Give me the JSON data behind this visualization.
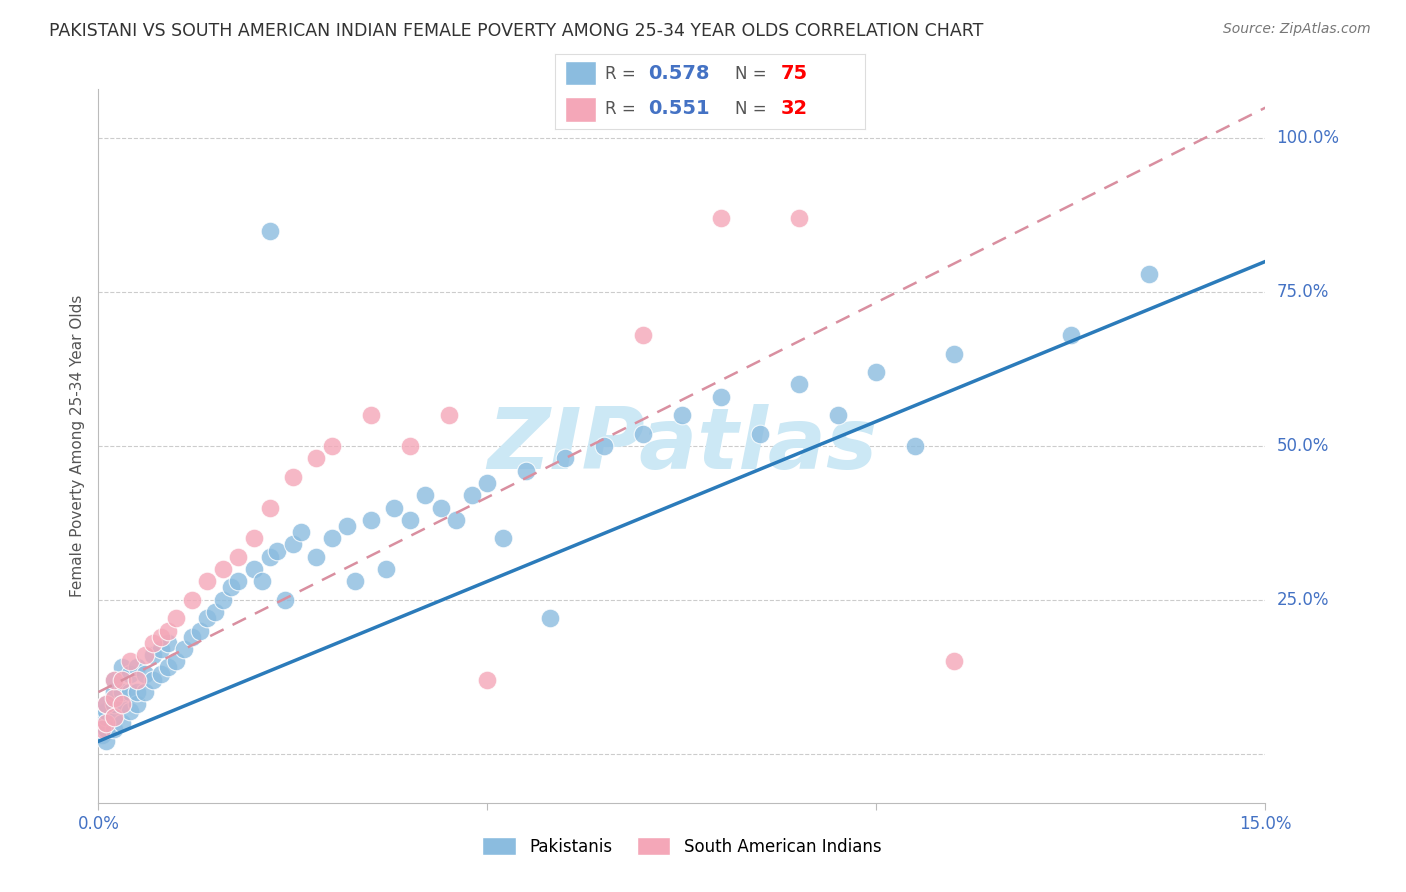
{
  "title": "PAKISTANI VS SOUTH AMERICAN INDIAN FEMALE POVERTY AMONG 25-34 YEAR OLDS CORRELATION CHART",
  "source": "Source: ZipAtlas.com",
  "ylabel": "Female Poverty Among 25-34 Year Olds",
  "xlim": [
    0.0,
    0.15
  ],
  "ylim": [
    -0.05,
    1.05
  ],
  "pakistani_R": 0.578,
  "pakistani_N": 75,
  "sai_R": 0.551,
  "sai_N": 32,
  "blue_scatter_color": "#8bbcdf",
  "pink_scatter_color": "#f4a7b8",
  "blue_line_color": "#2b7bba",
  "pink_line_color": "#d98fa0",
  "watermark_color": "#cce8f5",
  "title_color": "#333333",
  "axis_label_color": "#555555",
  "tick_color": "#4472C4",
  "grid_color": "#cccccc",
  "legend_R_color": "#4472C4",
  "legend_N_color": "#FF0000",
  "pak_x": [
    0.0005,
    0.001,
    0.001,
    0.001,
    0.001,
    0.001,
    0.001,
    0.002,
    0.002,
    0.002,
    0.002,
    0.002,
    0.003,
    0.003,
    0.003,
    0.003,
    0.004,
    0.004,
    0.004,
    0.005,
    0.005,
    0.005,
    0.006,
    0.006,
    0.007,
    0.007,
    0.008,
    0.008,
    0.009,
    0.009,
    0.01,
    0.011,
    0.012,
    0.013,
    0.014,
    0.015,
    0.016,
    0.017,
    0.018,
    0.02,
    0.021,
    0.022,
    0.023,
    0.024,
    0.025,
    0.026,
    0.028,
    0.03,
    0.032,
    0.033,
    0.035,
    0.037,
    0.038,
    0.04,
    0.042,
    0.044,
    0.046,
    0.048,
    0.05,
    0.052,
    0.055,
    0.058,
    0.06,
    0.065,
    0.07,
    0.075,
    0.08,
    0.085,
    0.09,
    0.095,
    0.1,
    0.105,
    0.11,
    0.125,
    0.135
  ],
  "pak_y": [
    0.03,
    0.02,
    0.04,
    0.05,
    0.06,
    0.07,
    0.08,
    0.04,
    0.06,
    0.08,
    0.1,
    0.12,
    0.05,
    0.08,
    0.1,
    0.14,
    0.07,
    0.1,
    0.13,
    0.08,
    0.1,
    0.14,
    0.1,
    0.13,
    0.12,
    0.16,
    0.13,
    0.17,
    0.14,
    0.18,
    0.15,
    0.17,
    0.19,
    0.2,
    0.22,
    0.23,
    0.25,
    0.27,
    0.28,
    0.3,
    0.28,
    0.32,
    0.33,
    0.25,
    0.34,
    0.36,
    0.32,
    0.35,
    0.37,
    0.28,
    0.38,
    0.3,
    0.4,
    0.38,
    0.42,
    0.4,
    0.38,
    0.42,
    0.44,
    0.35,
    0.46,
    0.22,
    0.48,
    0.5,
    0.52,
    0.55,
    0.58,
    0.52,
    0.6,
    0.55,
    0.62,
    0.5,
    0.65,
    0.68,
    0.78
  ],
  "pak_outlier_x": [
    0.022
  ],
  "pak_outlier_y": [
    0.85
  ],
  "sai_x": [
    0.0005,
    0.001,
    0.001,
    0.002,
    0.002,
    0.002,
    0.003,
    0.003,
    0.004,
    0.005,
    0.006,
    0.007,
    0.008,
    0.009,
    0.01,
    0.012,
    0.014,
    0.016,
    0.018,
    0.02,
    0.022,
    0.025,
    0.028,
    0.03,
    0.035,
    0.04,
    0.045,
    0.05,
    0.07,
    0.08,
    0.09,
    0.11
  ],
  "sai_y": [
    0.04,
    0.05,
    0.08,
    0.06,
    0.09,
    0.12,
    0.08,
    0.12,
    0.15,
    0.12,
    0.16,
    0.18,
    0.19,
    0.2,
    0.22,
    0.25,
    0.28,
    0.3,
    0.32,
    0.35,
    0.4,
    0.45,
    0.48,
    0.5,
    0.55,
    0.5,
    0.55,
    0.12,
    0.68,
    0.87,
    0.87,
    0.15
  ],
  "blue_trend_x0": 0.0,
  "blue_trend_y0": 0.02,
  "blue_trend_x1": 0.15,
  "blue_trend_y1": 0.8,
  "pink_trend_x0": 0.0,
  "pink_trend_y0": 0.1,
  "pink_trend_x1": 0.15,
  "pink_trend_y1": 1.05
}
